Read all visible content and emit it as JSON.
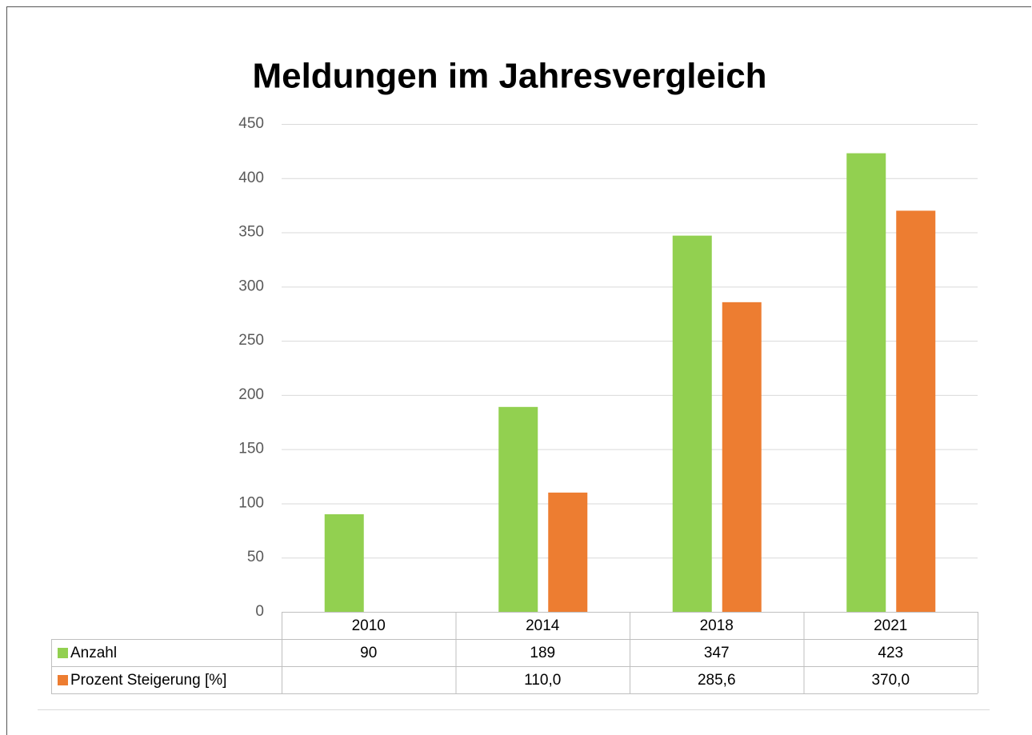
{
  "chart_data": {
    "type": "bar",
    "title": "Meldungen im Jahresvergleich",
    "categories": [
      "2010",
      "2014",
      "2018",
      "2021"
    ],
    "series": [
      {
        "name": "Anzahl",
        "color": "#92d050",
        "values": [
          90,
          189,
          347,
          423
        ]
      },
      {
        "name": "Prozent Steigerung [%]",
        "color": "#ed7d31",
        "values": [
          null,
          110.0,
          285.6,
          370.0
        ],
        "value_labels": [
          null,
          "110,0",
          "285,6",
          "370,0"
        ]
      }
    ],
    "ylim": [
      0,
      450
    ],
    "yticks": [
      0,
      50,
      100,
      150,
      200,
      250,
      300,
      350,
      400,
      450
    ],
    "grid": true,
    "legend": "table"
  }
}
